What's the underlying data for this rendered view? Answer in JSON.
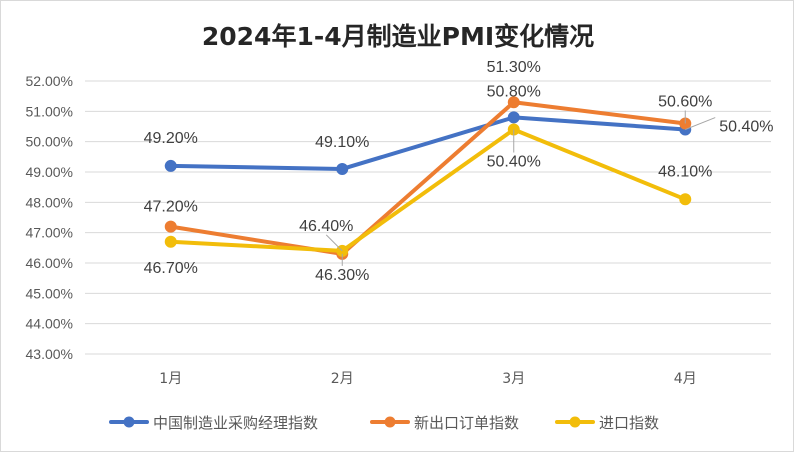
{
  "chart_data": {
    "type": "line",
    "title": "2024年1-4月制造业PMI变化情况",
    "categories": [
      "1月",
      "2月",
      "3月",
      "4月"
    ],
    "ylim": [
      43.0,
      52.0
    ],
    "ytick_step": 1.0,
    "ytick_labels": [
      "43.00%",
      "44.00%",
      "45.00%",
      "46.00%",
      "47.00%",
      "48.00%",
      "49.00%",
      "50.00%",
      "51.00%",
      "52.00%"
    ],
    "value_suffix": "%",
    "grid": true,
    "legend_position": "bottom",
    "series": [
      {
        "name": "中国制造业采购经理指数",
        "color": "#4472C4",
        "values": [
          49.2,
          49.1,
          50.8,
          50.4
        ],
        "data_labels": [
          "49.20%",
          "49.10%",
          "50.80%",
          "50.40%"
        ]
      },
      {
        "name": "新出口订单指数",
        "color": "#ED7D31",
        "values": [
          47.2,
          46.3,
          51.3,
          50.6
        ],
        "data_labels": [
          "47.20%",
          "46.30%",
          "51.30%",
          "50.60%"
        ]
      },
      {
        "name": "进口指数",
        "color": "#F2BD0A",
        "values": [
          46.7,
          46.4,
          50.4,
          48.1
        ],
        "data_labels": [
          "46.70%",
          "46.40%",
          "50.40%",
          "48.10%"
        ]
      }
    ]
  }
}
